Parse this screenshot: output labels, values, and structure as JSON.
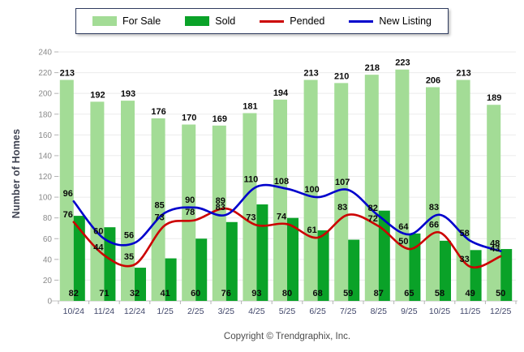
{
  "legend": {
    "items": [
      {
        "label": "For Sale",
        "type": "bar",
        "color": "#a3dc96"
      },
      {
        "label": "Sold",
        "type": "bar",
        "color": "#0aa228"
      },
      {
        "label": "Pended",
        "type": "line",
        "color": "#cc0000"
      },
      {
        "label": "New Listing",
        "type": "line",
        "color": "#0000cc"
      }
    ]
  },
  "chart_data": {
    "type": "combo",
    "title": "",
    "xlabel": "",
    "ylabel": "Number of Homes",
    "ylim": [
      0,
      240
    ],
    "ytick_step": 20,
    "grid": true,
    "legend_position": "top",
    "categories": [
      "10/24",
      "11/24",
      "12/24",
      "1/25",
      "2/25",
      "3/25",
      "4/25",
      "5/25",
      "6/25",
      "7/25",
      "8/25",
      "9/25",
      "10/25",
      "11/25",
      "12/25"
    ],
    "series": [
      {
        "name": "For Sale",
        "type": "bar",
        "color": "#a3dc96",
        "values": [
          213,
          192,
          193,
          176,
          170,
          169,
          181,
          194,
          213,
          210,
          218,
          223,
          206,
          213,
          189
        ]
      },
      {
        "name": "Sold",
        "type": "bar",
        "color": "#0aa228",
        "values": [
          82,
          71,
          32,
          41,
          60,
          76,
          93,
          80,
          68,
          59,
          87,
          65,
          58,
          49,
          50
        ]
      },
      {
        "name": "Pended",
        "type": "line",
        "color": "#cc0000",
        "values": [
          76,
          44,
          35,
          73,
          78,
          89,
          73,
          74,
          61,
          83,
          72,
          50,
          66,
          33,
          43
        ]
      },
      {
        "name": "New Listing",
        "type": "line",
        "color": "#0000cc",
        "values": [
          96,
          60,
          56,
          85,
          90,
          83,
          110,
          108,
          100,
          107,
          82,
          64,
          83,
          58,
          48
        ]
      }
    ]
  },
  "footer": {
    "copyright": "Copyright © Trendgraphix, Inc."
  },
  "colors": {
    "grid": "#ebebeb",
    "axis": "#c4c4c4",
    "ytick_text": "#8a8a8a",
    "xtick_text": "#40466a",
    "value_text": "#0a0a0a"
  }
}
